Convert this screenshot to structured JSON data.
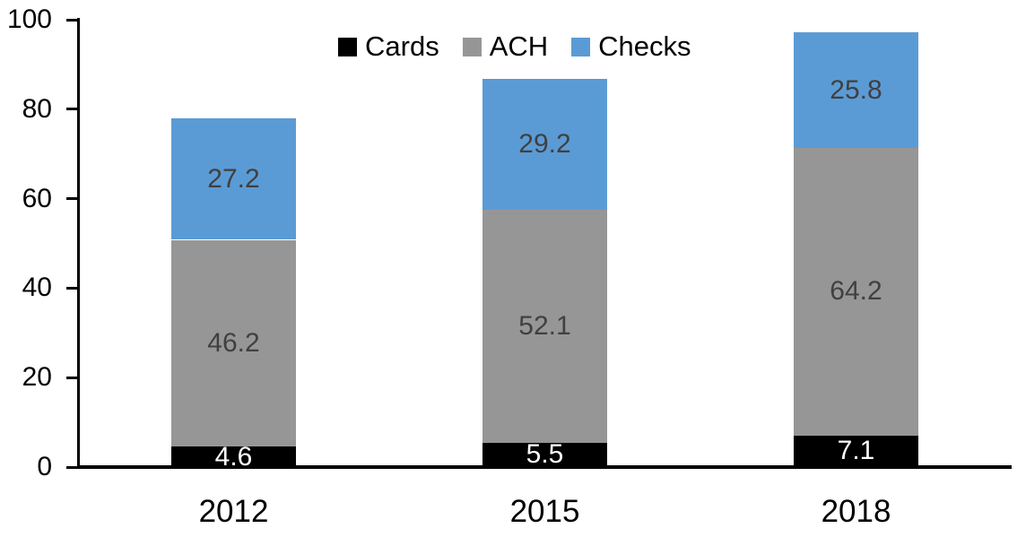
{
  "chart_data": {
    "type": "bar",
    "stacked": true,
    "title": "",
    "xlabel": "",
    "ylabel": "",
    "categories": [
      "2012",
      "2015",
      "2018"
    ],
    "series": [
      {
        "name": "Cards",
        "color": "#000000",
        "label_color": "#FFFFFF",
        "values": [
          4.6,
          5.5,
          7.1
        ]
      },
      {
        "name": "ACH",
        "color": "#969696",
        "label_color": "#404040",
        "values": [
          46.2,
          52.1,
          64.2
        ]
      },
      {
        "name": "Checks",
        "color": "#5B9BD5",
        "label_color": "#404040",
        "values": [
          27.2,
          29.2,
          25.8
        ]
      }
    ],
    "totals": [
      78.0,
      86.8,
      97.1
    ],
    "ylim": [
      0,
      100
    ],
    "yticks": [
      0,
      20,
      40,
      60,
      80,
      100
    ],
    "grid": false,
    "legend_position": "top",
    "data_labels": true
  },
  "colors": {
    "axis": "#000000",
    "background": "#FFFFFF",
    "tick_label": "#000000"
  }
}
